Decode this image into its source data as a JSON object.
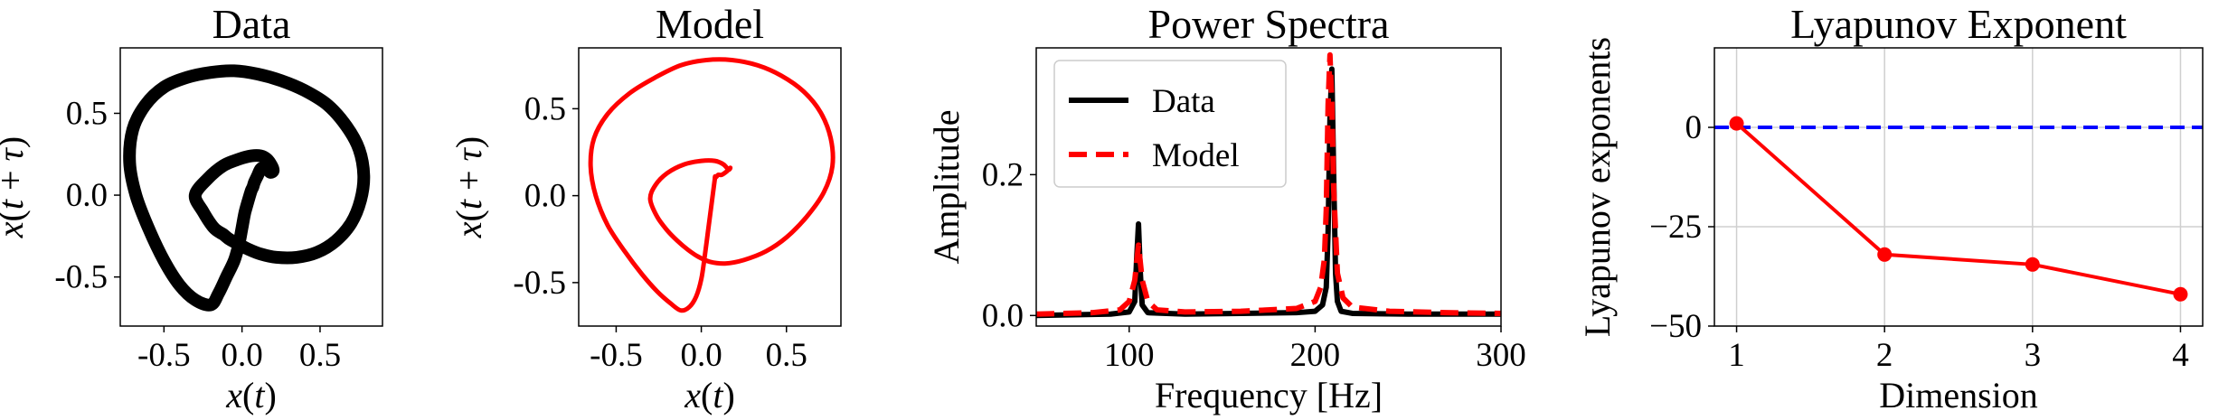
{
  "figure": {
    "panels": 4
  },
  "chart_data": [
    {
      "type": "line",
      "title": "Data",
      "xlabel": "x(t)",
      "ylabel": "x(t + τ)",
      "xlim": [
        -0.78,
        0.9
      ],
      "ylim": [
        -0.8,
        0.9
      ],
      "xticks": [
        -0.5,
        0.0,
        0.5
      ],
      "xtick_labels": [
        "-0.5",
        "0.0",
        "0.5"
      ],
      "yticks": [
        -0.5,
        0.0,
        0.5
      ],
      "ytick_labels": [
        "-0.5",
        "0.0",
        "0.5"
      ],
      "color": "#000000",
      "series": [
        {
          "x": [
            0.05,
            0.02,
            0.0,
            -0.02,
            -0.05,
            -0.1,
            -0.15,
            -0.2,
            -0.3,
            -0.4,
            -0.5,
            -0.6,
            -0.68,
            -0.72,
            -0.7,
            -0.62,
            -0.5,
            -0.35,
            -0.2,
            -0.05,
            0.1,
            0.25,
            0.4,
            0.55,
            0.67,
            0.75,
            0.78,
            0.76,
            0.7,
            0.6,
            0.48,
            0.35,
            0.22,
            0.12,
            0.04,
            -0.02,
            -0.08,
            -0.12,
            -0.18,
            -0.25,
            -0.3,
            -0.22,
            -0.12,
            -0.02,
            0.06,
            0.12,
            0.16,
            0.19,
            0.2,
            0.18,
            0.15,
            0.12,
            0.1,
            0.08,
            0.07,
            0.06,
            0.05
          ],
          "y": [
            0.0,
            -0.1,
            -0.2,
            -0.3,
            -0.4,
            -0.5,
            -0.6,
            -0.67,
            -0.64,
            -0.55,
            -0.4,
            -0.2,
            0.0,
            0.2,
            0.4,
            0.55,
            0.66,
            0.72,
            0.75,
            0.76,
            0.74,
            0.7,
            0.64,
            0.55,
            0.42,
            0.28,
            0.12,
            -0.03,
            -0.17,
            -0.28,
            -0.35,
            -0.38,
            -0.38,
            -0.36,
            -0.33,
            -0.3,
            -0.27,
            -0.24,
            -0.2,
            -0.1,
            0.0,
            0.1,
            0.18,
            0.22,
            0.24,
            0.24,
            0.22,
            0.18,
            0.15,
            0.14,
            0.17,
            0.16,
            0.12,
            0.08,
            0.05,
            0.03,
            0.0
          ]
        }
      ]
    },
    {
      "type": "line",
      "title": "Model",
      "xlabel": "x(t)",
      "ylabel": "x(t + τ)",
      "xlim": [
        -0.72,
        0.82
      ],
      "ylim": [
        -0.75,
        0.85
      ],
      "xticks": [
        -0.5,
        0.0,
        0.5
      ],
      "xtick_labels": [
        "-0.5",
        "0.0",
        "0.5"
      ],
      "yticks": [
        -0.5,
        0.0,
        0.5
      ],
      "ytick_labels": [
        "-0.5",
        "0.0",
        "0.5"
      ],
      "color": "#ff0000",
      "series": [
        {
          "x": [
            0.08,
            0.06,
            0.04,
            0.02,
            0.0,
            -0.03,
            -0.07,
            -0.12,
            -0.18,
            -0.26,
            -0.35,
            -0.45,
            -0.55,
            -0.62,
            -0.65,
            -0.63,
            -0.55,
            -0.42,
            -0.27,
            -0.12,
            0.03,
            0.18,
            0.33,
            0.47,
            0.6,
            0.7,
            0.76,
            0.77,
            0.72,
            0.62,
            0.5,
            0.38,
            0.25,
            0.14,
            0.05,
            -0.02,
            -0.08,
            -0.14,
            -0.2,
            -0.26,
            -0.3,
            -0.27,
            -0.2,
            -0.1,
            0.0,
            0.08,
            0.13,
            0.16,
            0.17,
            0.15,
            0.12,
            0.1,
            0.09,
            0.08
          ],
          "y": [
            0.1,
            -0.05,
            -0.2,
            -0.35,
            -0.48,
            -0.58,
            -0.64,
            -0.66,
            -0.62,
            -0.55,
            -0.45,
            -0.32,
            -0.17,
            0.0,
            0.17,
            0.33,
            0.47,
            0.59,
            0.68,
            0.75,
            0.78,
            0.78,
            0.75,
            0.69,
            0.6,
            0.48,
            0.33,
            0.17,
            0.02,
            -0.12,
            -0.24,
            -0.32,
            -0.37,
            -0.39,
            -0.38,
            -0.35,
            -0.31,
            -0.26,
            -0.2,
            -0.12,
            -0.02,
            0.06,
            0.13,
            0.18,
            0.2,
            0.2,
            0.18,
            0.15,
            0.16,
            0.14,
            0.12,
            0.12,
            0.11,
            0.1
          ]
        }
      ]
    },
    {
      "type": "line",
      "title": "Power Spectra",
      "xlabel": "Frequency [Hz]",
      "ylabel": "Amplitude",
      "xlim": [
        50,
        300
      ],
      "ylim": [
        -0.015,
        0.38
      ],
      "xticks": [
        100,
        200,
        300
      ],
      "xtick_labels": [
        "100",
        "200",
        "300"
      ],
      "yticks": [
        0.0,
        0.2
      ],
      "ytick_labels": [
        "0.0",
        "0.2"
      ],
      "legend": {
        "position": "top-left"
      },
      "series": [
        {
          "name": "Data",
          "color": "#000000",
          "dash": "solid",
          "x": [
            50,
            90,
            100,
            103,
            104,
            105,
            106,
            107,
            110,
            130,
            160,
            190,
            200,
            204,
            206,
            207,
            208,
            209,
            210,
            211,
            212,
            214,
            220,
            250,
            280,
            300
          ],
          "y": [
            0.0,
            0.002,
            0.005,
            0.02,
            0.08,
            0.13,
            0.06,
            0.015,
            0.004,
            0.002,
            0.003,
            0.004,
            0.006,
            0.015,
            0.04,
            0.12,
            0.28,
            0.35,
            0.2,
            0.06,
            0.02,
            0.006,
            0.003,
            0.002,
            0.002,
            0.002
          ]
        },
        {
          "name": "Model",
          "color": "#ff0000",
          "dash": "dashed",
          "x": [
            50,
            80,
            95,
            100,
            103,
            105,
            107,
            110,
            115,
            130,
            160,
            190,
            200,
            203,
            205,
            206,
            207,
            208,
            209,
            210,
            212,
            215,
            220,
            240,
            270,
            300
          ],
          "y": [
            0.002,
            0.004,
            0.008,
            0.02,
            0.05,
            0.1,
            0.05,
            0.02,
            0.008,
            0.005,
            0.006,
            0.01,
            0.02,
            0.04,
            0.08,
            0.15,
            0.3,
            0.37,
            0.3,
            0.18,
            0.06,
            0.025,
            0.012,
            0.006,
            0.004,
            0.003
          ]
        }
      ]
    },
    {
      "type": "line",
      "title": "Lyapunov Exponent",
      "xlabel": "Dimension",
      "ylabel": "Lyapunov exponents",
      "xlim": [
        0.85,
        4.15
      ],
      "ylim": [
        -50,
        20
      ],
      "xticks": [
        1,
        2,
        3,
        4
      ],
      "xtick_labels": [
        "1",
        "2",
        "3",
        "4"
      ],
      "yticks": [
        -50,
        -25,
        0
      ],
      "ytick_labels": [
        "−50",
        "−25",
        "0"
      ],
      "grid": true,
      "reference_line": {
        "y": 0,
        "color": "#0000ff",
        "dash": "dashed"
      },
      "series": [
        {
          "color": "#ff0000",
          "x": [
            1,
            2,
            3,
            4
          ],
          "y": [
            1,
            -32,
            -34.5,
            -42
          ]
        }
      ]
    }
  ]
}
